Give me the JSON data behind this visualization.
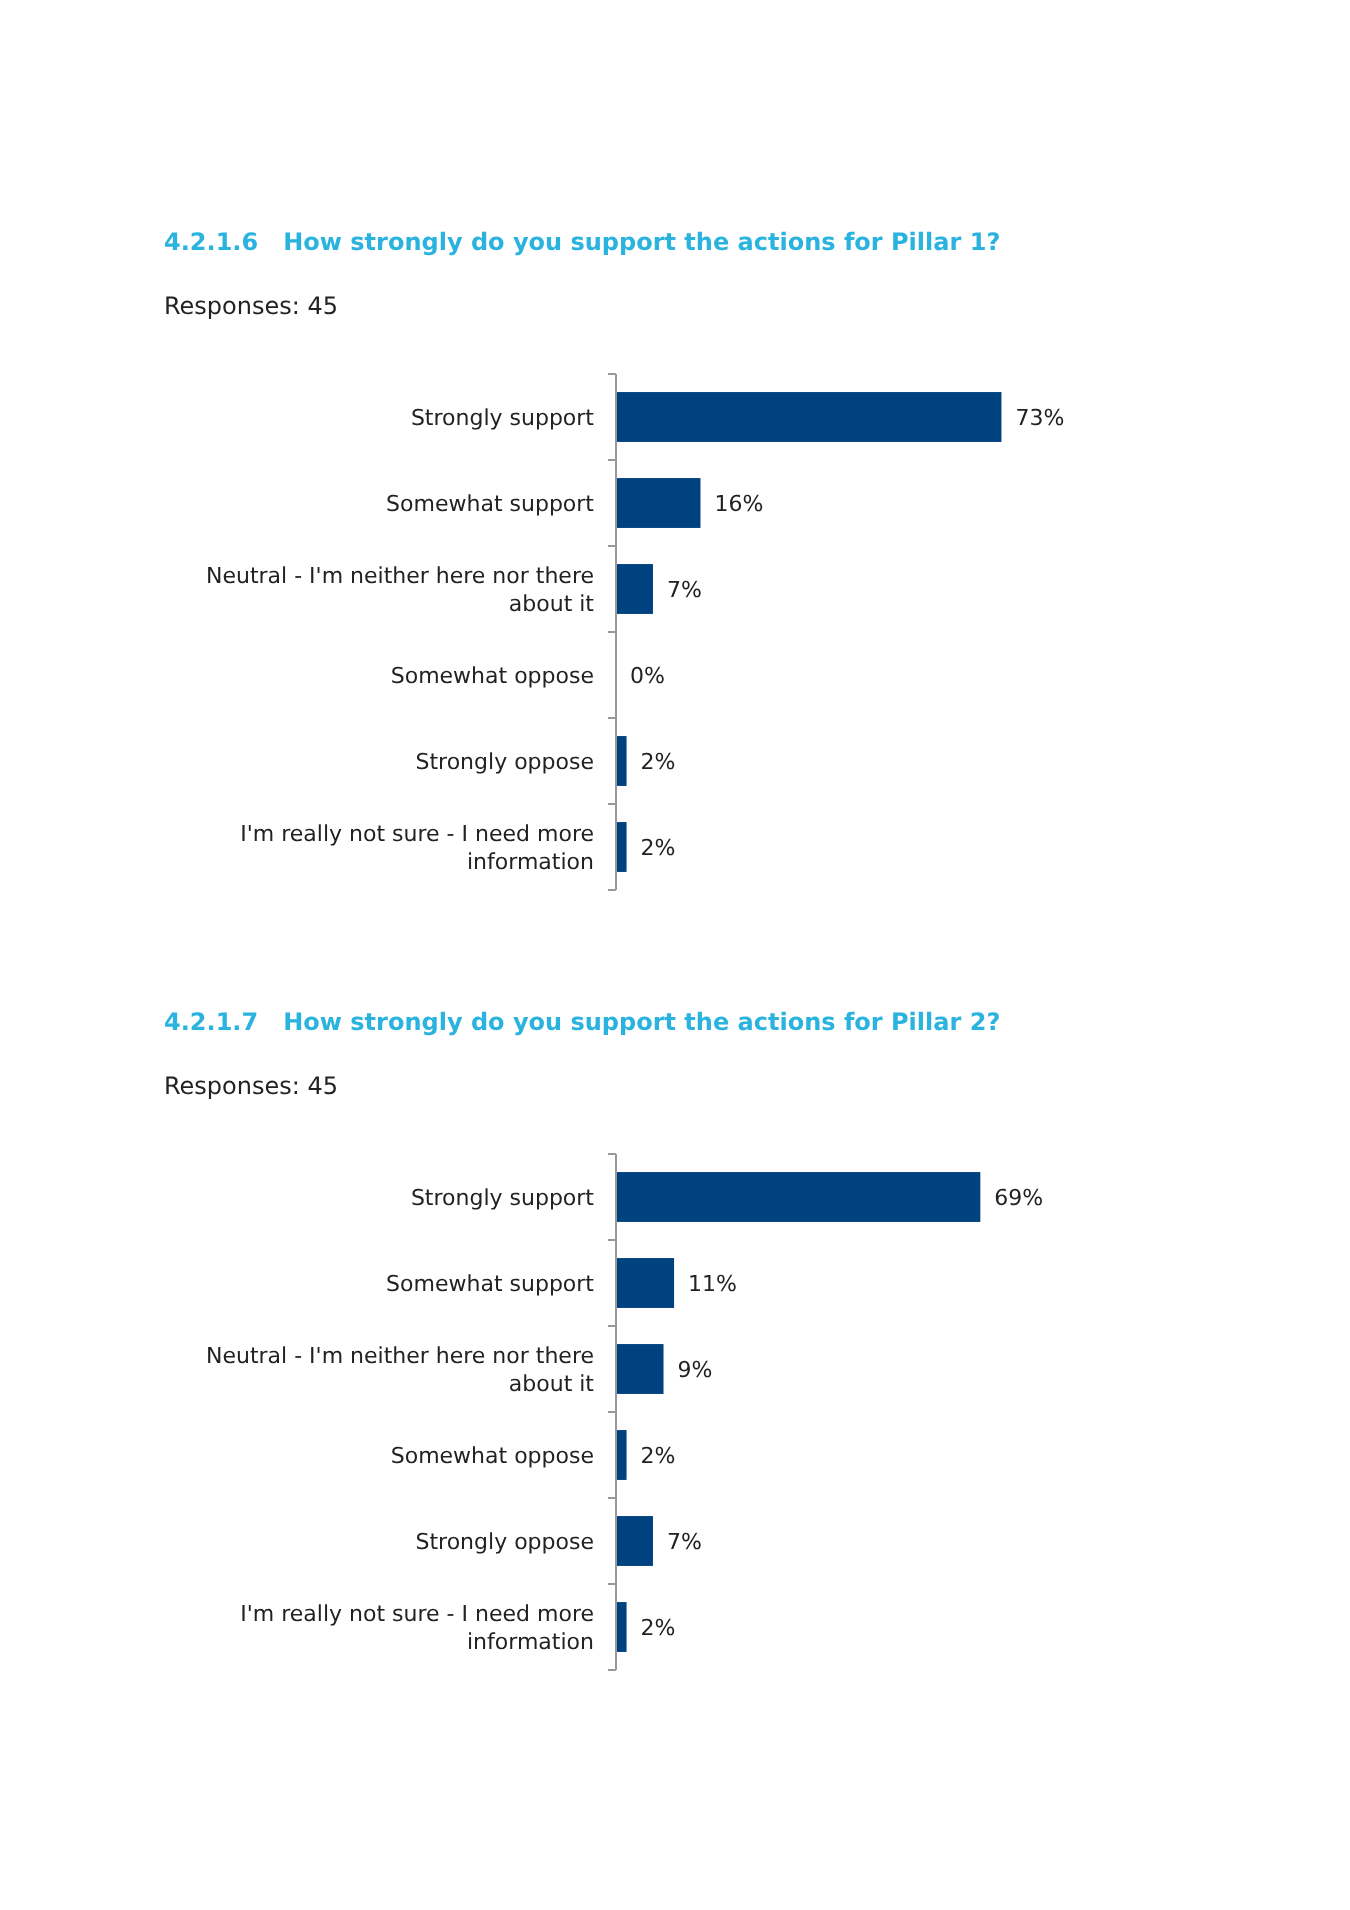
{
  "chart_data": [
    {
      "type": "bar",
      "orientation": "horizontal",
      "title": "4.2.1.6   How strongly do you support the actions for Pillar 1?",
      "subtitle": "Responses: 45",
      "categories": [
        "Strongly support",
        "Somewhat support",
        "Neutral - I'm neither here nor there about it",
        "Somewhat oppose",
        "Strongly oppose",
        "I'm really not sure - I need more information"
      ],
      "values": [
        73,
        16,
        7,
        0,
        2,
        2
      ],
      "value_labels": [
        "73%",
        "16%",
        "7%",
        "0%",
        "2%",
        "2%"
      ],
      "color": "#004180"
    },
    {
      "type": "bar",
      "orientation": "horizontal",
      "title": "4.2.1.7   How strongly do you support the actions for Pillar 2?",
      "subtitle": "Responses: 45",
      "categories": [
        "Strongly support",
        "Somewhat support",
        "Neutral - I'm neither here nor there about it",
        "Somewhat oppose",
        "Strongly oppose",
        "I'm really not sure - I need more information"
      ],
      "values": [
        69,
        11,
        9,
        2,
        7,
        2
      ],
      "value_labels": [
        "69%",
        "11%",
        "9%",
        "2%",
        "7%",
        "2%"
      ],
      "color": "#004180"
    }
  ]
}
